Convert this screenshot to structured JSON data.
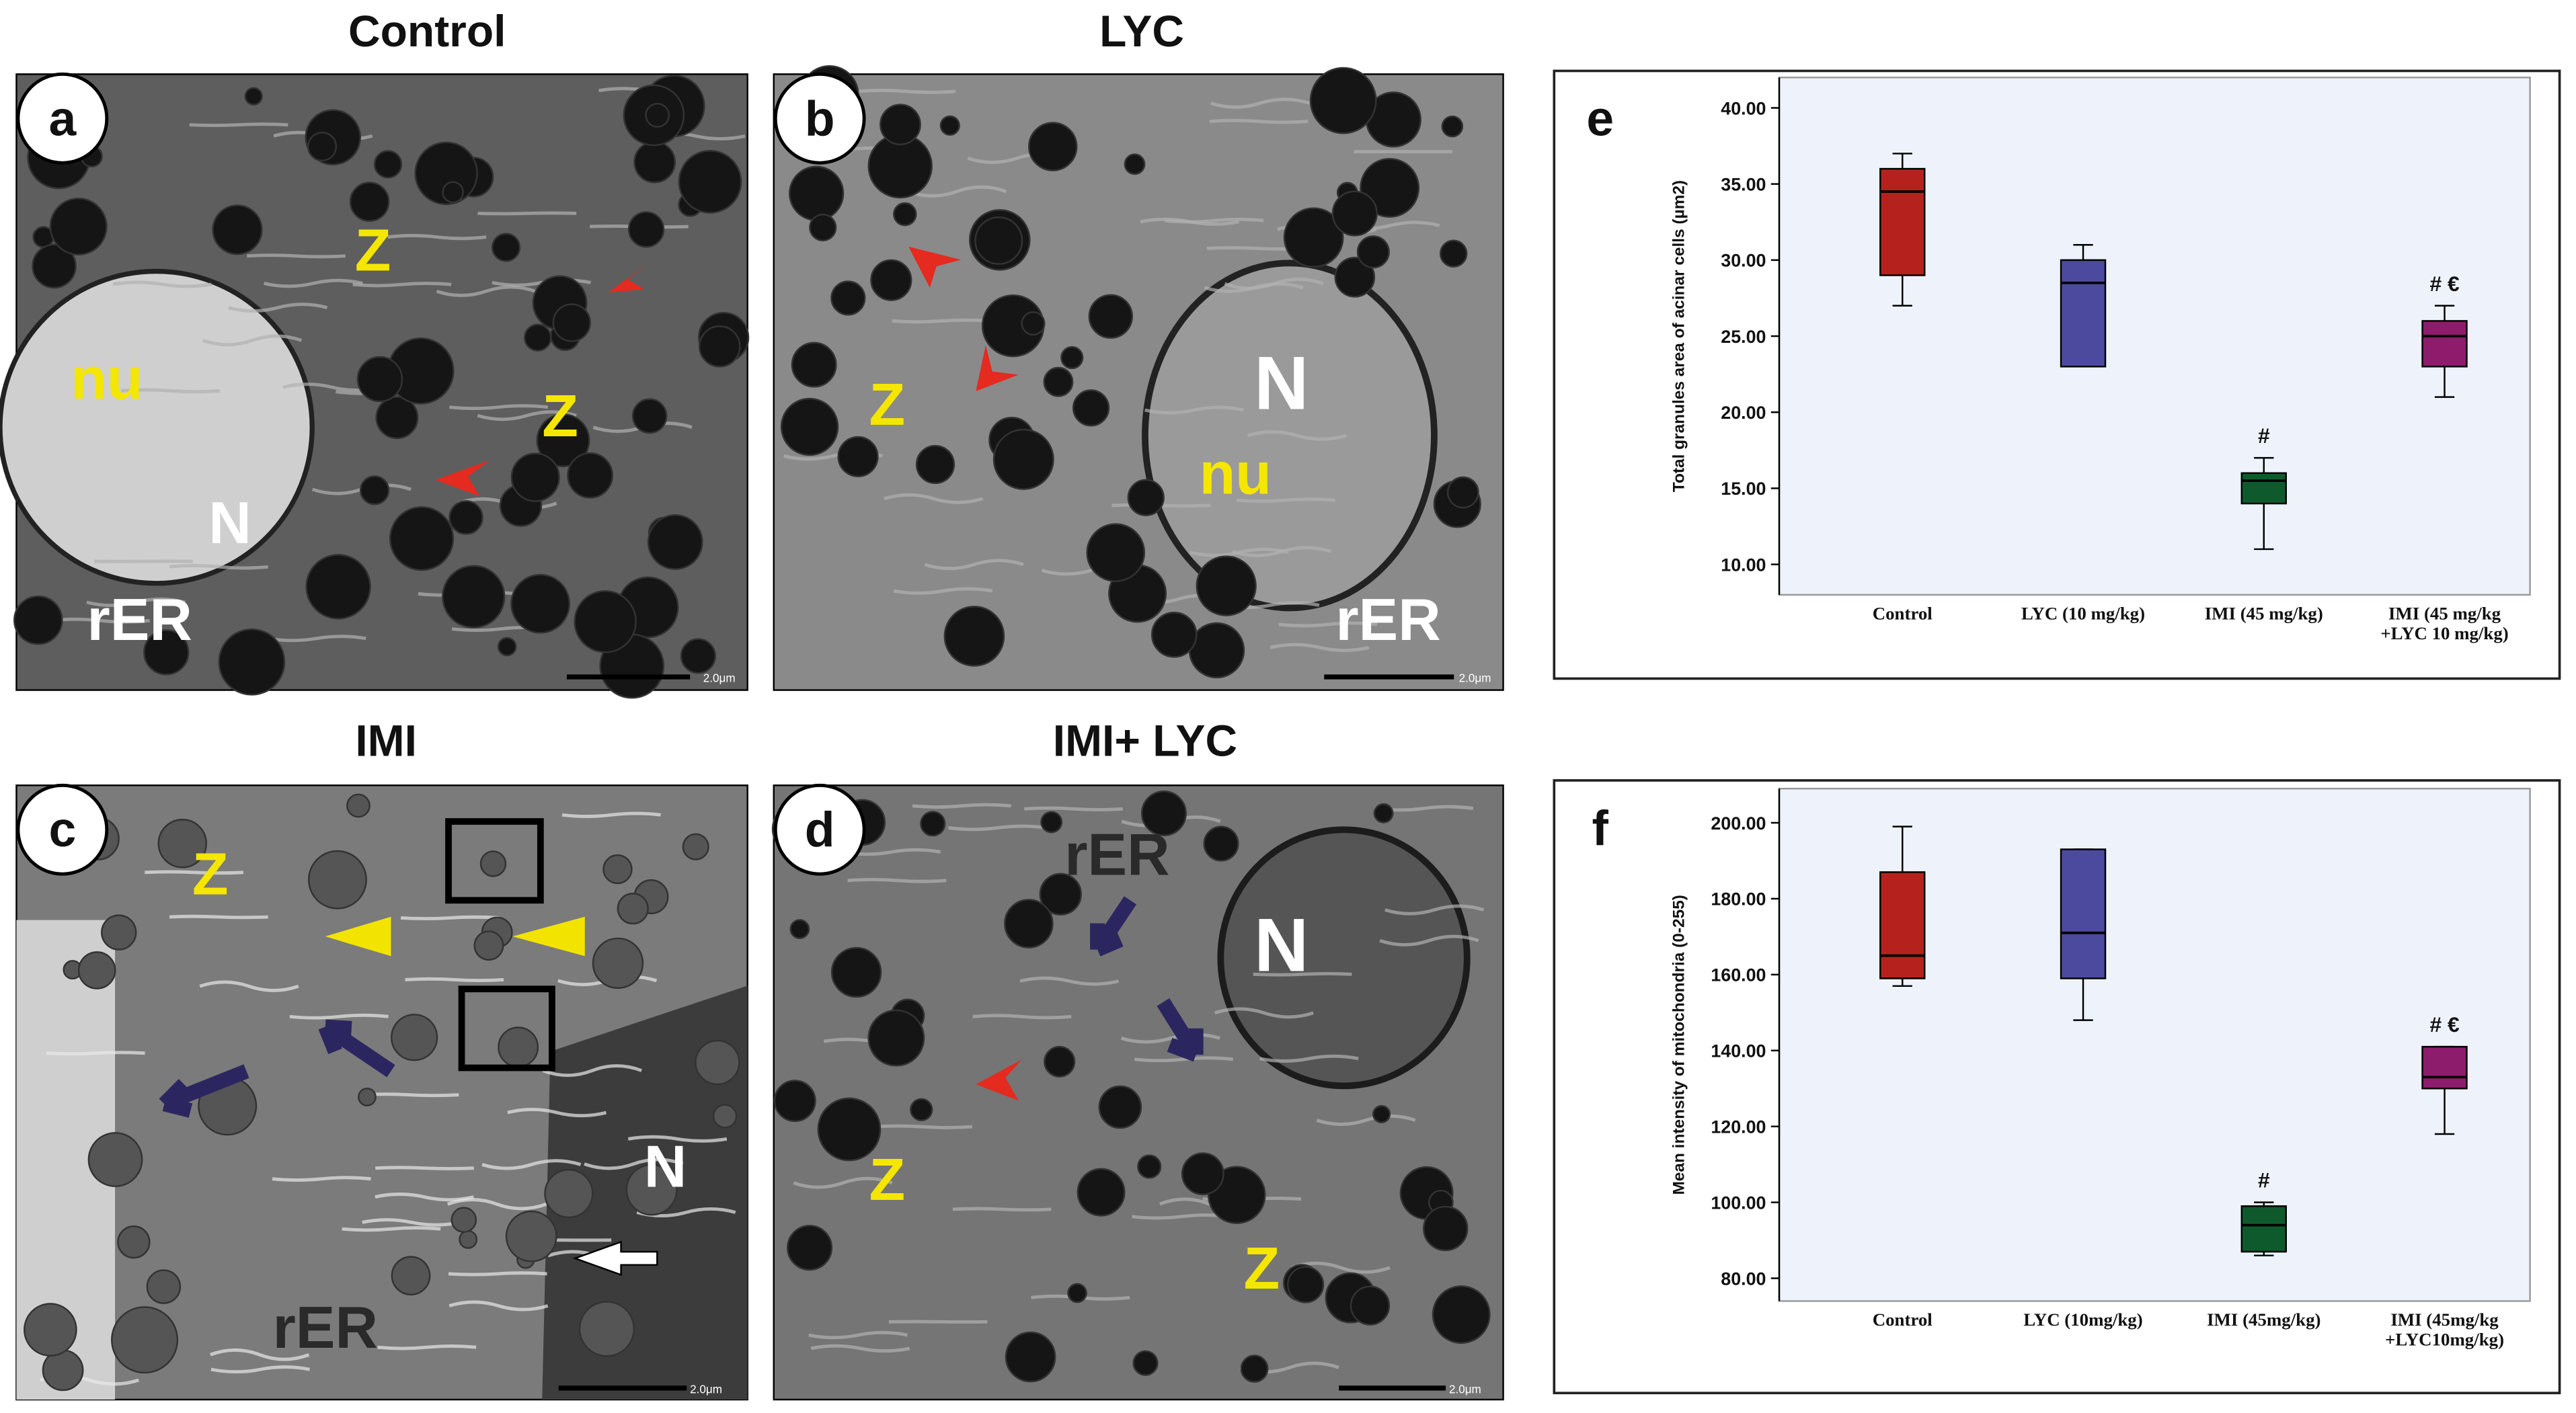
{
  "panels": [
    {
      "letter": "a",
      "title": "Control",
      "labels": [
        "Z",
        "Z",
        "nu",
        "N",
        "rER"
      ],
      "scale": "2.0μm"
    },
    {
      "letter": "b",
      "title": "LYC",
      "labels": [
        "Z",
        "N",
        "nu",
        "rER"
      ],
      "scale": "2.0μm"
    },
    {
      "letter": "c",
      "title": "IMI",
      "labels": [
        "Z",
        "N",
        "rER"
      ],
      "scale": "2.0μm"
    },
    {
      "letter": "d",
      "title": "IMI+ LYC",
      "labels": [
        "rER",
        "N",
        "Z",
        "Z"
      ],
      "scale": "2.0μm"
    }
  ],
  "chart_data": [
    {
      "type": "box",
      "letter": "e",
      "ylabel": "Total granules area of acinar cells (µm2)",
      "categories": [
        [
          "Control"
        ],
        [
          "LYC (10 mg/kg)"
        ],
        [
          "IMI (45 mg/kg)"
        ],
        [
          "IMI (45 mg/kg",
          "+LYC 10 mg/kg)"
        ]
      ],
      "values": [
        [
          27,
          29,
          34.5,
          36,
          37
        ],
        [
          23,
          23,
          28.5,
          30,
          31
        ],
        [
          11,
          14,
          15.5,
          16,
          17
        ],
        [
          21,
          23,
          25,
          26,
          27
        ]
      ],
      "colors": [
        "#b5221e",
        "#4c4a9e",
        "#0f5a2c",
        "#8e1c6c"
      ],
      "annotations": [
        null,
        null,
        "#",
        "# €"
      ],
      "ylim": [
        8,
        42
      ],
      "yticks": [
        {
          "value": 10,
          "label": "10.00"
        },
        {
          "value": 15,
          "label": "15.00"
        },
        {
          "value": 20,
          "label": "20.00"
        },
        {
          "value": 25,
          "label": "25.00"
        },
        {
          "value": 30,
          "label": "30.00"
        },
        {
          "value": 35,
          "label": "35.00"
        },
        {
          "value": 40,
          "label": "40.00"
        }
      ]
    },
    {
      "type": "box",
      "letter": "f",
      "ylabel": "Mean intensity of mitochondria (0-255)",
      "categories": [
        [
          "Control"
        ],
        [
          "LYC (10mg/kg)"
        ],
        [
          "IMI (45mg/kg)"
        ],
        [
          "IMI (45mg/kg",
          "+LYC10mg/kg)"
        ]
      ],
      "values": [
        [
          157,
          159,
          165,
          187,
          199
        ],
        [
          148,
          159,
          171,
          193,
          193
        ],
        [
          86,
          87,
          94,
          99,
          100
        ],
        [
          118,
          130,
          133,
          141,
          141
        ]
      ],
      "colors": [
        "#b5221e",
        "#4c4a9e",
        "#0f5a2c",
        "#8e1c6c"
      ],
      "annotations": [
        null,
        null,
        "#",
        "# €"
      ],
      "ylim": [
        74,
        209
      ],
      "yticks": [
        {
          "value": 80,
          "label": "80.00"
        },
        {
          "value": 100,
          "label": "100.00"
        },
        {
          "value": 120,
          "label": "120.00"
        },
        {
          "value": 140,
          "label": "140.00"
        },
        {
          "value": 160,
          "label": "160.00"
        },
        {
          "value": 180,
          "label": "180.00"
        },
        {
          "value": 200,
          "label": "200.00"
        }
      ]
    }
  ]
}
